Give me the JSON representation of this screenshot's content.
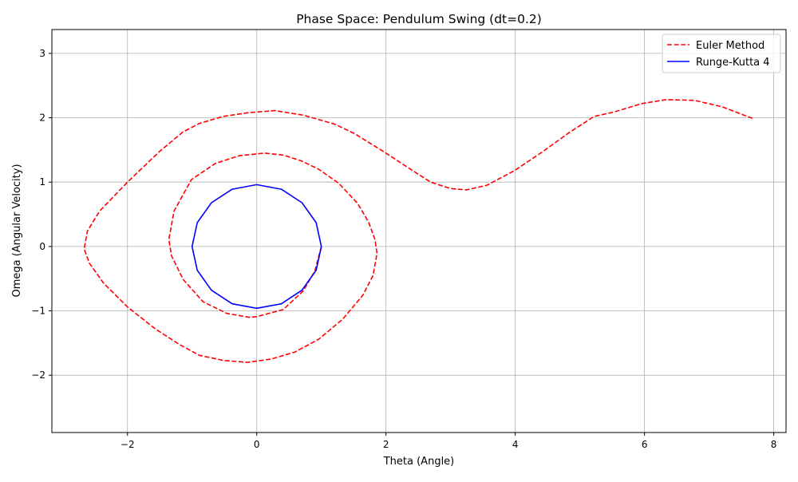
{
  "chart_data": {
    "type": "line",
    "title": "Phase Space: Pendulum Swing (dt=0.2)",
    "xlabel": "Theta (Angle)",
    "ylabel": "Omega (Angular Velocity)",
    "xlim": [
      -3.17,
      8.19
    ],
    "ylim": [
      -2.89,
      3.37
    ],
    "xticks": [
      -2,
      0,
      2,
      4,
      6,
      8
    ],
    "xtick_labels": [
      "−2",
      "0",
      "2",
      "4",
      "6",
      "8"
    ],
    "yticks": [
      -2,
      -1,
      0,
      1,
      2,
      3
    ],
    "ytick_labels": [
      "−2",
      "−1",
      "0",
      "1",
      "2",
      "3"
    ],
    "grid": true,
    "legend_position": "top-right",
    "series": [
      {
        "name": "Euler Method",
        "color": "#ff0000",
        "style": "dashed",
        "x": [
          1.0,
          0.9,
          0.72,
          0.41,
          0.0,
          -0.12,
          -0.46,
          -0.83,
          -1.14,
          -1.32,
          -1.36,
          -1.28,
          -1.01,
          -0.64,
          -0.27,
          0.12,
          0.41,
          0.69,
          0.96,
          1.27,
          1.56,
          1.73,
          1.83,
          1.86,
          1.8,
          1.64,
          1.33,
          0.96,
          0.59,
          0.22,
          -0.15,
          -0.52,
          -0.89,
          -1.2,
          -1.57,
          -2.0,
          -2.37,
          -2.59,
          -2.67,
          -2.62,
          -2.43,
          -2.0,
          -1.51,
          -1.14,
          -0.89,
          -0.52,
          -0.12,
          0.28,
          0.72,
          1.21,
          1.52,
          2.0,
          2.38,
          2.69,
          3.0,
          3.25,
          3.56,
          3.99,
          4.42,
          4.85,
          5.22,
          5.53,
          5.96,
          6.33,
          6.77,
          7.2,
          7.67
        ],
        "y": [
          0.0,
          -0.38,
          -0.69,
          -0.98,
          -1.09,
          -1.1,
          -1.04,
          -0.86,
          -0.51,
          -0.14,
          0.11,
          0.55,
          1.04,
          1.29,
          1.41,
          1.45,
          1.42,
          1.33,
          1.2,
          0.98,
          0.67,
          0.38,
          0.11,
          -0.11,
          -0.45,
          -0.76,
          -1.13,
          -1.44,
          -1.64,
          -1.75,
          -1.8,
          -1.77,
          -1.69,
          -1.52,
          -1.28,
          -0.94,
          -0.57,
          -0.26,
          -0.04,
          0.24,
          0.55,
          1.0,
          1.47,
          1.78,
          1.91,
          2.02,
          2.08,
          2.11,
          2.04,
          1.9,
          1.75,
          1.45,
          1.2,
          1.0,
          0.9,
          0.88,
          0.95,
          1.18,
          1.47,
          1.78,
          2.02,
          2.09,
          2.22,
          2.28,
          2.27,
          2.17,
          1.99
        ]
      },
      {
        "name": "Runge-Kutta 4",
        "color": "#0000ff",
        "style": "solid",
        "x": [
          1.0,
          0.92,
          0.7,
          0.38,
          0.0,
          -0.38,
          -0.7,
          -0.92,
          -1.0,
          -0.92,
          -0.7,
          -0.38,
          0.0,
          0.38,
          0.7,
          0.92,
          1.0
        ],
        "y": [
          0.0,
          0.37,
          0.68,
          0.89,
          0.96,
          0.89,
          0.68,
          0.37,
          0.0,
          -0.37,
          -0.68,
          -0.89,
          -0.96,
          -0.89,
          -0.68,
          -0.37,
          0.0
        ]
      }
    ]
  }
}
